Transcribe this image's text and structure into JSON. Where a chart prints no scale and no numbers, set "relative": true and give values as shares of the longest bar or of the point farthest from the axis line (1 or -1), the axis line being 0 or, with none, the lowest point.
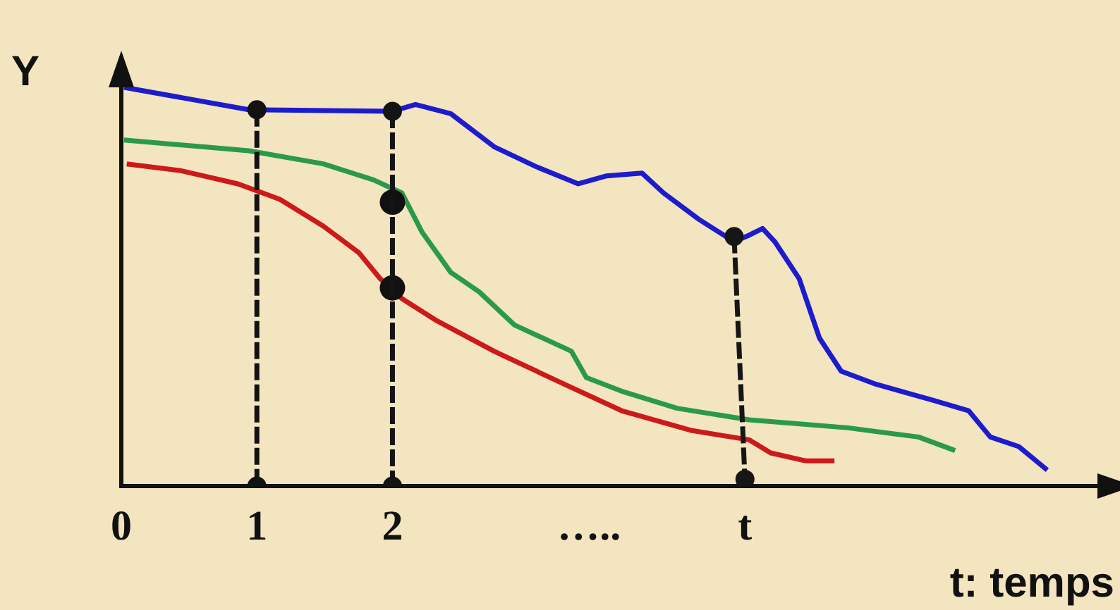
{
  "chart_data": {
    "type": "line",
    "relative": true,
    "ylabel": "Y",
    "xlabel": "t: temps",
    "xlim": [
      0,
      7.2
    ],
    "xticks": [
      0,
      1,
      2,
      {
        "value": 3.45,
        "label": "….."
      },
      {
        "value": 4.6,
        "label": "t"
      }
    ],
    "grid": false,
    "legend": false,
    "marker": "none",
    "series": [
      {
        "color": "#1c1ccc",
        "x": [
          0.02,
          0.94,
          2.0,
          2.17,
          2.43,
          2.75,
          3.06,
          3.37,
          3.58,
          3.84,
          4.0,
          4.26,
          4.52,
          4.63,
          4.73,
          4.82,
          5.0,
          5.15,
          5.31,
          5.57,
          5.99,
          6.25,
          6.41,
          6.62,
          6.83
        ],
        "values": [
          1.0,
          0.944,
          0.94,
          0.957,
          0.934,
          0.851,
          0.801,
          0.758,
          0.778,
          0.785,
          0.735,
          0.669,
          0.613,
          0.629,
          0.646,
          0.613,
          0.52,
          0.371,
          0.288,
          0.255,
          0.215,
          0.189,
          0.123,
          0.099,
          0.04
        ]
      },
      {
        "color": "#2a9a4a",
        "x": [
          0.02,
          0.94,
          1.49,
          1.86,
          2.07,
          2.22,
          2.43,
          2.64,
          2.9,
          3.32,
          3.43,
          3.69,
          4.1,
          4.63,
          5.36,
          5.88,
          6.15
        ],
        "values": [
          0.868,
          0.841,
          0.808,
          0.768,
          0.735,
          0.636,
          0.536,
          0.487,
          0.404,
          0.338,
          0.272,
          0.238,
          0.195,
          0.166,
          0.146,
          0.123,
          0.089
        ]
      },
      {
        "color": "#cc1a1a",
        "x": [
          0.04,
          0.44,
          0.86,
          1.17,
          1.49,
          1.75,
          1.91,
          2.07,
          2.33,
          2.75,
          3.27,
          3.69,
          4.21,
          4.63,
          4.79,
          5.05,
          5.26
        ],
        "values": [
          0.808,
          0.791,
          0.758,
          0.719,
          0.652,
          0.586,
          0.52,
          0.47,
          0.414,
          0.338,
          0.255,
          0.189,
          0.139,
          0.116,
          0.083,
          0.063,
          0.063
        ]
      },
      {
        "type": "scatter",
        "color": "#111111",
        "marker": "circle",
        "x": [
          2,
          2
        ],
        "values": [
          0.712,
          0.497
        ]
      },
      {
        "color": "#121212",
        "line_style": "dashed",
        "marker": "circle",
        "x": [
          1,
          1
        ],
        "values": [
          0.944,
          0
        ]
      },
      {
        "color": "#141414",
        "line_style": "dashed",
        "marker": "circle",
        "x": [
          2,
          2
        ],
        "values": [
          0.94,
          0
        ]
      },
      {
        "color": "#161616",
        "line_style": "dashed",
        "marker": "circle",
        "x": [
          4.52,
          4.6
        ],
        "values": [
          0.626,
          0.017
        ]
      }
    ]
  }
}
